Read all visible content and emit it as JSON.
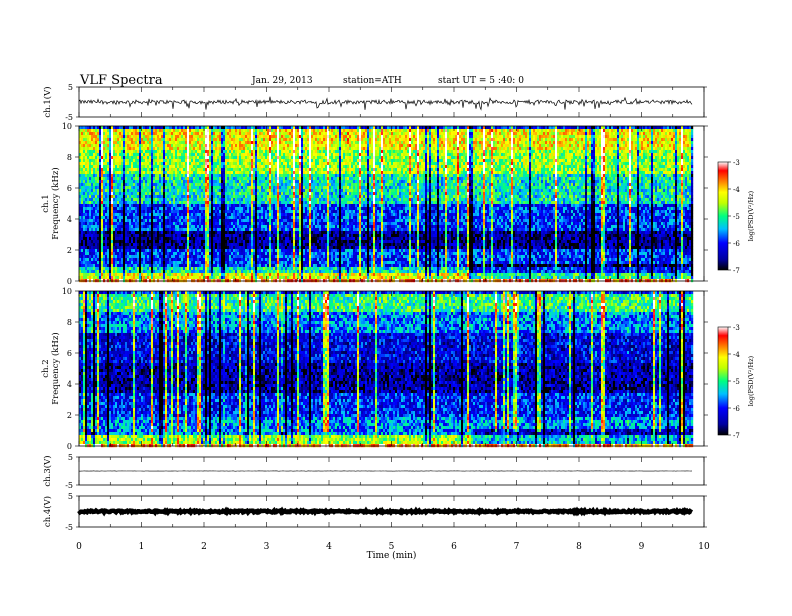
{
  "header": {
    "title": "VLF  Spectra",
    "date": "Jan. 29, 2013",
    "station": "station=ATH",
    "start": "start  UT  =   5  :40: 0"
  },
  "chart_data": [
    {
      "type": "line",
      "panel": "ch1-waveform",
      "ylabel": "ch.1(V)",
      "ylim": [
        -5,
        5
      ],
      "y_ticks": [
        "5",
        "-5"
      ],
      "baseline": 0,
      "note_visible_trace": "dense noisy waveform centered near 0 V with spikes reaching about -2 V",
      "xlim": [
        0,
        10
      ],
      "trace_end": 9.8
    },
    {
      "type": "heatmap",
      "panel": "ch1-spectrogram",
      "ylabel": "Frequency  (kHz)",
      "channel_label": "ch.1",
      "ylim": [
        0,
        10
      ],
      "y_ticks": [
        "0",
        "2",
        "4",
        "6",
        "8",
        "10"
      ],
      "xlim": [
        0,
        10
      ],
      "data_end": 9.8,
      "colorbar": {
        "label": "log(PSD(V²/Hz)",
        "range": [
          -7,
          -3
        ],
        "ticks": [
          "-7",
          "-6",
          "-5",
          "-4",
          "-3"
        ]
      },
      "bands": [
        {
          "f0": 0.0,
          "f1": 0.3,
          "level": -3.4
        },
        {
          "f0": 0.3,
          "f1": 0.6,
          "level": -4.3
        },
        {
          "f0": 0.6,
          "f1": 1.0,
          "level": -5.2
        },
        {
          "f0": 1.0,
          "f1": 2.2,
          "level": -5.9
        },
        {
          "f0": 2.2,
          "f1": 3.4,
          "level": -6.6
        },
        {
          "f0": 3.4,
          "f1": 5.0,
          "level": -5.9
        },
        {
          "f0": 5.0,
          "f1": 7.0,
          "level": -5.2
        },
        {
          "f0": 7.0,
          "f1": 8.6,
          "level": -4.6
        },
        {
          "f0": 8.6,
          "f1": 10.0,
          "level": -4.2
        }
      ]
    },
    {
      "type": "heatmap",
      "panel": "ch2-spectrogram",
      "ylabel": "Frequency  (kHz)",
      "channel_label": "ch.2",
      "ylim": [
        0,
        10
      ],
      "y_ticks": [
        "0",
        "2",
        "4",
        "6",
        "8",
        "10"
      ],
      "xlim": [
        0,
        10
      ],
      "data_end": 9.8,
      "colorbar": {
        "label": "log(PSD(V²/Hz)",
        "range": [
          -7,
          -3
        ],
        "ticks": [
          "-7",
          "-6",
          "-5",
          "-4",
          "-3"
        ]
      },
      "bands": [
        {
          "f0": 0.0,
          "f1": 0.3,
          "level": -3.5
        },
        {
          "f0": 0.3,
          "f1": 0.8,
          "level": -4.6
        },
        {
          "f0": 0.8,
          "f1": 2.0,
          "level": -5.6
        },
        {
          "f0": 2.0,
          "f1": 3.6,
          "level": -6.0
        },
        {
          "f0": 3.6,
          "f1": 5.4,
          "level": -6.5
        },
        {
          "f0": 5.4,
          "f1": 7.4,
          "level": -6.2
        },
        {
          "f0": 7.4,
          "f1": 8.8,
          "level": -5.6
        },
        {
          "f0": 8.8,
          "f1": 10.0,
          "level": -5.0
        }
      ]
    },
    {
      "type": "line",
      "panel": "ch3-waveform",
      "ylabel": "ch.3(V)",
      "ylim": [
        -5,
        5
      ],
      "y_ticks": [
        "5",
        "-5"
      ],
      "baseline": 0,
      "xlim": [
        0,
        10
      ],
      "trace_end": 9.8
    },
    {
      "type": "line",
      "panel": "ch4-waveform",
      "ylabel": "ch.4(V)",
      "ylim": [
        -5,
        5
      ],
      "y_ticks": [
        "5",
        "-5"
      ],
      "baseline": 0,
      "xlim": [
        0,
        10
      ],
      "trace_end": 9.8,
      "x_ticks": [
        "0",
        "1",
        "2",
        "3",
        "4",
        "5",
        "6",
        "7",
        "8",
        "9",
        "10"
      ],
      "xlabel": "Time  (min)"
    }
  ],
  "colors": {
    "colormap": [
      "#000080",
      "#0000ff",
      "#0080ff",
      "#00ffff",
      "#00ff80",
      "#80ff00",
      "#ffff00",
      "#ff8000",
      "#ff0000",
      "#ffffff"
    ]
  }
}
